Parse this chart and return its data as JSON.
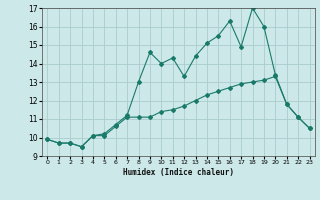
{
  "title": "",
  "xlabel": "Humidex (Indice chaleur)",
  "ylabel": "",
  "xlim": [
    -0.5,
    23.5
  ],
  "ylim": [
    9,
    17
  ],
  "yticks": [
    9,
    10,
    11,
    12,
    13,
    14,
    15,
    16,
    17
  ],
  "xticks": [
    0,
    1,
    2,
    3,
    4,
    5,
    6,
    7,
    8,
    9,
    10,
    11,
    12,
    13,
    14,
    15,
    16,
    17,
    18,
    19,
    20,
    21,
    22,
    23
  ],
  "bg_color": "#cce8e8",
  "grid_color": "#aacccc",
  "line_color": "#1a7a6a",
  "series": [
    [
      9.9,
      9.7,
      9.7,
      9.5,
      10.1,
      10.1,
      10.6,
      11.1,
      11.1,
      11.1,
      11.4,
      11.5,
      11.7,
      12.0,
      12.3,
      12.5,
      12.7,
      12.9,
      13.0,
      13.1,
      13.3,
      11.8,
      11.1,
      10.5
    ],
    [
      9.9,
      9.7,
      9.7,
      9.5,
      10.1,
      10.2,
      10.7,
      11.2,
      13.0,
      14.6,
      14.0,
      14.3,
      13.3,
      14.4,
      15.1,
      15.5,
      16.3,
      14.9,
      17.0,
      16.0,
      13.4,
      11.8,
      11.1,
      10.5
    ]
  ]
}
